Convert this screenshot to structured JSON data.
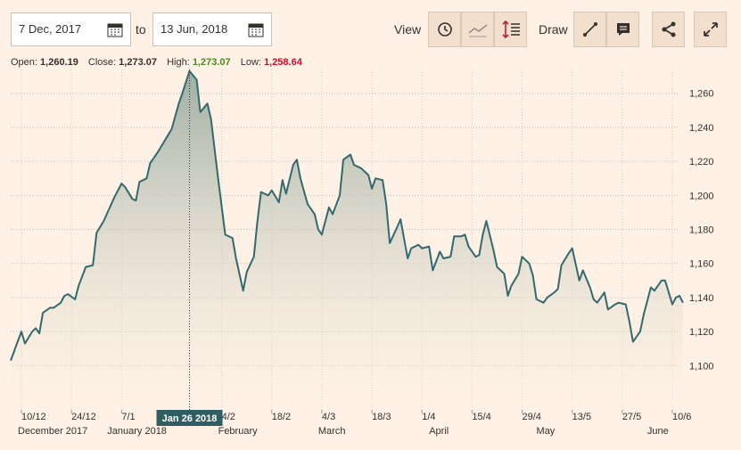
{
  "toolbar": {
    "start_date": "7 Dec, 2017",
    "to": "to",
    "end_date": "13 Jun, 2018",
    "view": "View",
    "draw": "Draw"
  },
  "readout": [
    {
      "label": "Open:",
      "value": "1,260.19"
    },
    {
      "label": "Close:",
      "value": "1,273.07"
    },
    {
      "label": "High:",
      "value": "1,273.07"
    },
    {
      "label": "Low:",
      "value": "1,258.64"
    }
  ],
  "chart_data": {
    "type": "area",
    "color": "#33696e",
    "x": [
      "2017-12-07",
      "2017-12-10",
      "2017-12-11",
      "2017-12-13",
      "2017-12-14",
      "2017-12-15",
      "2017-12-16",
      "2017-12-18",
      "2017-12-19",
      "2017-12-21",
      "2017-12-22",
      "2017-12-23",
      "2017-12-25",
      "2017-12-26",
      "2017-12-28",
      "2017-12-30",
      "2017-12-31",
      "2018-01-02",
      "2018-01-05",
      "2018-01-07",
      "2018-01-08",
      "2018-01-10",
      "2018-01-11",
      "2018-01-12",
      "2018-01-14",
      "2018-01-15",
      "2018-01-17",
      "2018-01-19",
      "2018-01-21",
      "2018-01-23",
      "2018-01-24",
      "2018-01-26",
      "2018-01-28",
      "2018-01-29",
      "2018-01-31",
      "2018-02-01",
      "2018-02-03",
      "2018-02-05",
      "2018-02-07",
      "2018-02-08",
      "2018-02-10",
      "2018-02-11",
      "2018-02-13",
      "2018-02-14",
      "2018-02-15",
      "2018-02-17",
      "2018-02-18",
      "2018-02-20",
      "2018-02-21",
      "2018-02-22",
      "2018-02-24",
      "2018-02-25",
      "2018-02-26",
      "2018-02-28",
      "2018-03-02",
      "2018-03-03",
      "2018-03-04",
      "2018-03-06",
      "2018-03-07",
      "2018-03-09",
      "2018-03-10",
      "2018-03-12",
      "2018-03-13",
      "2018-03-15",
      "2018-03-17",
      "2018-03-18",
      "2018-03-19",
      "2018-03-21",
      "2018-03-22",
      "2018-03-23",
      "2018-03-25",
      "2018-03-26",
      "2018-03-28",
      "2018-03-29",
      "2018-03-31",
      "2018-04-01",
      "2018-04-03",
      "2018-04-04",
      "2018-04-06",
      "2018-04-07",
      "2018-04-09",
      "2018-04-10",
      "2018-04-12",
      "2018-04-13",
      "2018-04-14",
      "2018-04-16",
      "2018-04-17",
      "2018-04-18",
      "2018-04-19",
      "2018-04-21",
      "2018-04-22",
      "2018-04-24",
      "2018-04-25",
      "2018-04-26",
      "2018-04-28",
      "2018-04-29",
      "2018-05-01",
      "2018-05-02",
      "2018-05-03",
      "2018-05-05",
      "2018-05-06",
      "2018-05-08",
      "2018-05-09",
      "2018-05-10",
      "2018-05-12",
      "2018-05-13",
      "2018-05-15",
      "2018-05-16",
      "2018-05-18",
      "2018-05-19",
      "2018-05-20",
      "2018-05-22",
      "2018-05-23",
      "2018-05-25",
      "2018-05-26",
      "2018-05-28",
      "2018-05-29",
      "2018-05-30",
      "2018-06-01",
      "2018-06-02",
      "2018-06-04",
      "2018-06-05",
      "2018-06-07",
      "2018-06-08",
      "2018-06-10",
      "2018-06-11",
      "2018-06-12",
      "2018-06-13"
    ],
    "values": [
      1103,
      1120,
      1113,
      1120,
      1122,
      1119,
      1131,
      1134,
      1134,
      1137,
      1141,
      1142,
      1139,
      1147,
      1158,
      1159,
      1178,
      1185,
      1199,
      1207,
      1205,
      1198,
      1197,
      1208,
      1210,
      1219,
      1225,
      1232,
      1239,
      1254,
      1260,
      1273.07,
      1268,
      1249,
      1254,
      1245,
      1210,
      1177,
      1175,
      1163,
      1144,
      1155,
      1164,
      1185,
      1202,
      1200,
      1203,
      1196,
      1209,
      1201,
      1218,
      1221,
      1210,
      1195,
      1189,
      1180,
      1177,
      1193,
      1189,
      1200,
      1221,
      1224,
      1218,
      1216,
      1212,
      1204,
      1210,
      1209,
      1195,
      1172,
      1181,
      1186,
      1163,
      1169,
      1171,
      1169,
      1170,
      1156,
      1167,
      1163,
      1164,
      1176,
      1176,
      1177,
      1170,
      1164,
      1165,
      1177,
      1185,
      1168,
      1158,
      1154,
      1141,
      1147,
      1154,
      1164,
      1160,
      1153,
      1139,
      1137,
      1140,
      1143,
      1145,
      1159,
      1166,
      1169,
      1150,
      1156,
      1146,
      1139,
      1137,
      1143,
      1133,
      1136,
      1137,
      1136,
      1126,
      1114,
      1120,
      1130,
      1146,
      1144,
      1150,
      1150,
      1136,
      1140,
      1141,
      1137
    ],
    "xlim": [
      "2017-12-07",
      "2018-06-13"
    ],
    "ylim": [
      1074,
      1274
    ],
    "yticks": [
      {
        "value": 1100,
        "label": "1,100"
      },
      {
        "value": 1120,
        "label": "1,120"
      },
      {
        "value": 1140,
        "label": "1,140"
      },
      {
        "value": 1160,
        "label": "1,160"
      },
      {
        "value": 1180,
        "label": "1,180"
      },
      {
        "value": 1200,
        "label": "1,200"
      },
      {
        "value": 1220,
        "label": "1,220"
      },
      {
        "value": 1240,
        "label": "1,240"
      },
      {
        "value": 1260,
        "label": "1,260"
      }
    ],
    "xticks": [
      {
        "value": "2017-12-10",
        "label": "10/12"
      },
      {
        "value": "2017-12-24",
        "label": "24/12"
      },
      {
        "value": "2018-01-07",
        "label": "7/1"
      },
      {
        "value": "2018-02-04",
        "label": "4/2"
      },
      {
        "value": "2018-02-18",
        "label": "18/2"
      },
      {
        "value": "2018-03-04",
        "label": "4/3"
      },
      {
        "value": "2018-03-18",
        "label": "18/3"
      },
      {
        "value": "2018-04-01",
        "label": "1/4"
      },
      {
        "value": "2018-04-15",
        "label": "15/4"
      },
      {
        "value": "2018-04-29",
        "label": "29/4"
      },
      {
        "value": "2018-05-13",
        "label": "13/5"
      },
      {
        "value": "2018-05-27",
        "label": "27/5"
      },
      {
        "value": "2018-06-10",
        "label": "10/6"
      }
    ],
    "month_ticks": [
      {
        "value": "2017-12",
        "label": "December 2017"
      },
      {
        "value": "2018-01",
        "label": "January 2018"
      },
      {
        "value": "2018-02",
        "label": "February"
      },
      {
        "value": "2018-03",
        "label": "March"
      },
      {
        "value": "2018-04",
        "label": "April"
      },
      {
        "value": "2018-05",
        "label": "May"
      },
      {
        "value": "2018-06",
        "label": "June"
      }
    ],
    "cursor": {
      "value": "2018-01-26",
      "label": "Jan 26 2018"
    },
    "grid": true
  }
}
